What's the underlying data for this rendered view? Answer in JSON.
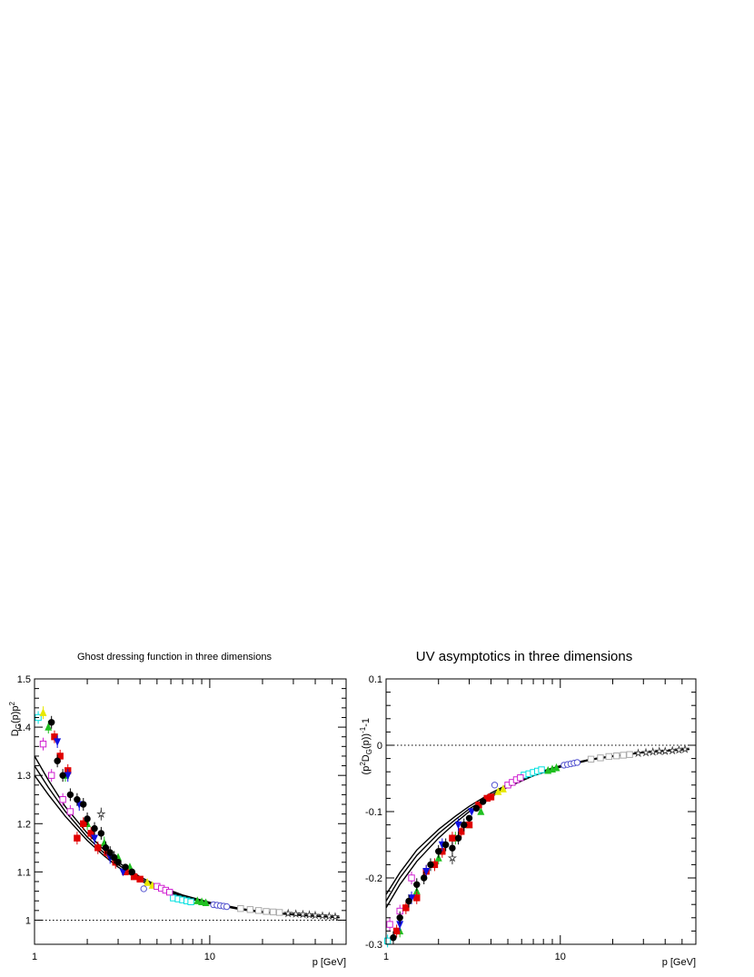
{
  "chart_data": [
    {
      "type": "scatter",
      "title": "Ghost dressing function in three dimensions",
      "xlabel": "p [GeV]",
      "ylabel_parts": {
        "base": "D",
        "sub": "G",
        "mid": "(p)p",
        "sup": "2"
      },
      "x_scale": "log",
      "xlim": [
        1,
        60
      ],
      "ylim": [
        0.95,
        1.5
      ],
      "x_ticklabels": [
        "1",
        "10"
      ],
      "y_ticks": [
        1,
        1.1,
        1.2,
        1.3,
        1.4,
        1.5
      ],
      "y_ticklabels": [
        "1",
        "1.1",
        "1.2",
        "1.3",
        "1.4",
        "1.5"
      ],
      "reference_line": {
        "y": 1,
        "style": "dotted"
      },
      "fit_curves": [
        {
          "x": [
            1,
            1.2,
            1.5,
            2,
            2.5,
            3,
            4,
            5,
            7,
            10,
            15,
            20,
            30,
            40,
            55
          ],
          "y": [
            1.34,
            1.29,
            1.235,
            1.18,
            1.145,
            1.12,
            1.09,
            1.072,
            1.052,
            1.037,
            1.024,
            1.018,
            1.012,
            1.009,
            1.006
          ]
        },
        {
          "x": [
            1,
            1.2,
            1.5,
            2,
            2.5,
            3,
            4,
            5,
            7,
            10,
            15,
            20,
            30,
            40,
            55
          ],
          "y": [
            1.32,
            1.275,
            1.225,
            1.172,
            1.139,
            1.115,
            1.086,
            1.069,
            1.05,
            1.035,
            1.023,
            1.017,
            1.011,
            1.008,
            1.006
          ]
        },
        {
          "x": [
            1,
            1.2,
            1.5,
            2,
            2.5,
            3,
            4,
            5,
            7,
            10,
            15,
            20,
            30,
            40,
            55
          ],
          "y": [
            1.3,
            1.26,
            1.215,
            1.165,
            1.133,
            1.11,
            1.082,
            1.066,
            1.048,
            1.034,
            1.022,
            1.016,
            1.011,
            1.008,
            1.005
          ]
        }
      ],
      "series": [
        {
          "color": "#00e0e0",
          "marker": "square-open",
          "x": [
            1.05,
            6.2,
            6.6,
            7.0,
            7.4,
            7.8
          ],
          "y": [
            1.42,
            1.046,
            1.044,
            1.042,
            1.04,
            1.038
          ]
        },
        {
          "color": "#e8e800",
          "marker": "triangle",
          "x": [
            1.12,
            4.4,
            4.7
          ],
          "y": [
            1.43,
            1.078,
            1.072
          ]
        },
        {
          "color": "#d020d0",
          "marker": "square-open",
          "x": [
            1.12,
            1.25,
            1.45,
            1.6,
            5.0,
            5.3,
            5.6,
            5.9
          ],
          "y": [
            1.365,
            1.3,
            1.25,
            1.225,
            1.07,
            1.066,
            1.062,
            1.058
          ]
        },
        {
          "color": "#20c020",
          "marker": "triangle",
          "x": [
            1.2,
            1.5,
            2.0,
            2.5,
            3.0,
            3.5,
            8.5,
            9.0,
            9.5
          ],
          "y": [
            1.4,
            1.3,
            1.2,
            1.16,
            1.13,
            1.11,
            1.04,
            1.038,
            1.036
          ]
        },
        {
          "color": "#e00000",
          "marker": "square",
          "x": [
            1.3,
            1.4,
            1.55,
            1.75,
            1.9,
            2.1,
            2.3,
            2.6,
            2.9,
            3.3,
            3.7,
            4.0
          ],
          "y": [
            1.38,
            1.34,
            1.31,
            1.17,
            1.2,
            1.18,
            1.15,
            1.14,
            1.12,
            1.1,
            1.09,
            1.085
          ]
        },
        {
          "color": "#1010e0",
          "marker": "triangle-down",
          "x": [
            1.35,
            1.55,
            1.8,
            2.2,
            2.7,
            3.2
          ],
          "y": [
            1.37,
            1.3,
            1.24,
            1.17,
            1.13,
            1.1
          ]
        },
        {
          "color": "#000000",
          "marker": "circle",
          "x": [
            1.25,
            1.35,
            1.45,
            1.6,
            1.75,
            1.9,
            2.0,
            2.2,
            2.4,
            2.55,
            2.7,
            2.85,
            3.0,
            3.3,
            3.6
          ],
          "y": [
            1.41,
            1.33,
            1.3,
            1.26,
            1.25,
            1.24,
            1.21,
            1.19,
            1.18,
            1.15,
            1.14,
            1.13,
            1.12,
            1.11,
            1.1
          ]
        },
        {
          "color": "#5555d0",
          "marker": "circle-open",
          "x": [
            4.2,
            10.5,
            11.0,
            11.5,
            12.0,
            12.5
          ],
          "y": [
            1.065,
            1.032,
            1.031,
            1.03,
            1.029,
            1.028
          ]
        },
        {
          "color": "#aaaaaa",
          "marker": "square-open",
          "x": [
            15,
            17,
            19,
            21,
            23,
            25
          ],
          "y": [
            1.024,
            1.022,
            1.02,
            1.018,
            1.017,
            1.016
          ]
        },
        {
          "color": "#333333",
          "marker": "star-open",
          "x": [
            2.4,
            28,
            31,
            34,
            37,
            40,
            44,
            48,
            52
          ],
          "y": [
            1.22,
            1.014,
            1.013,
            1.012,
            1.011,
            1.01,
            1.009,
            1.008,
            1.007
          ]
        }
      ]
    },
    {
      "type": "scatter",
      "title": "UV asymptotics in three dimensions",
      "xlabel": "p [GeV]",
      "ylabel_parts": {
        "pre": "(p",
        "sup": "2",
        "mid": "D",
        "sub": "G",
        "post": "(p))",
        "sup2": "-1",
        "tail": "-1"
      },
      "x_scale": "log",
      "xlim": [
        1,
        60
      ],
      "ylim": [
        -0.3,
        0.1
      ],
      "x_ticklabels": [
        "1",
        "10"
      ],
      "y_ticks": [
        -0.3,
        -0.2,
        -0.1,
        0,
        0.1
      ],
      "y_ticklabels": [
        "-0.3",
        "-0.2",
        "-0.1",
        "0",
        "0.1"
      ],
      "reference_line": {
        "y": 0,
        "style": "dotted"
      },
      "fit_curves": [
        {
          "x": [
            1,
            1.2,
            1.5,
            2,
            2.5,
            3,
            4,
            5,
            7,
            10,
            15,
            20,
            30,
            40,
            55
          ],
          "y": [
            -0.245,
            -0.21,
            -0.175,
            -0.14,
            -0.117,
            -0.1,
            -0.078,
            -0.063,
            -0.046,
            -0.033,
            -0.022,
            -0.017,
            -0.011,
            -0.009,
            -0.006
          ]
        },
        {
          "x": [
            1,
            1.2,
            1.5,
            2,
            2.5,
            3,
            4,
            5,
            7,
            10,
            15,
            20,
            30,
            40,
            55
          ],
          "y": [
            -0.235,
            -0.2,
            -0.166,
            -0.133,
            -0.112,
            -0.096,
            -0.075,
            -0.061,
            -0.045,
            -0.032,
            -0.021,
            -0.016,
            -0.011,
            -0.008,
            -0.006
          ]
        },
        {
          "x": [
            1,
            1.2,
            1.5,
            2,
            2.5,
            3,
            4,
            5,
            7,
            10,
            15,
            20,
            30,
            40,
            55
          ],
          "y": [
            -0.225,
            -0.192,
            -0.158,
            -0.127,
            -0.107,
            -0.092,
            -0.072,
            -0.059,
            -0.043,
            -0.031,
            -0.021,
            -0.016,
            -0.011,
            -0.008,
            -0.006
          ]
        }
      ],
      "series": [
        {
          "color": "#00e0e0",
          "marker": "square-open",
          "x": [
            1.02,
            6.2,
            6.6,
            7.0,
            7.4,
            7.8
          ],
          "y": [
            -0.295,
            -0.045,
            -0.043,
            -0.041,
            -0.039,
            -0.037
          ]
        },
        {
          "color": "#d020d0",
          "marker": "square-open",
          "x": [
            1.05,
            1.2,
            1.4,
            5.0,
            5.3,
            5.6,
            5.9
          ],
          "y": [
            -0.27,
            -0.25,
            -0.2,
            -0.06,
            -0.056,
            -0.052,
            -0.049
          ]
        },
        {
          "color": "#e8e800",
          "marker": "triangle",
          "x": [
            4.4,
            4.7
          ],
          "y": [
            -0.07,
            -0.066
          ]
        },
        {
          "color": "#20c020",
          "marker": "triangle",
          "x": [
            1.2,
            1.5,
            2.0,
            2.5,
            3.0,
            3.5,
            8.5,
            9.0,
            9.5
          ],
          "y": [
            -0.28,
            -0.22,
            -0.17,
            -0.14,
            -0.12,
            -0.1,
            -0.038,
            -0.036,
            -0.034
          ]
        },
        {
          "color": "#e00000",
          "marker": "square",
          "x": [
            1.15,
            1.3,
            1.5,
            1.7,
            1.9,
            2.1,
            2.4,
            2.7,
            3.0,
            3.4,
            3.8,
            4.0
          ],
          "y": [
            -0.28,
            -0.245,
            -0.23,
            -0.19,
            -0.18,
            -0.16,
            -0.14,
            -0.13,
            -0.12,
            -0.09,
            -0.08,
            -0.078
          ]
        },
        {
          "color": "#1010e0",
          "marker": "triangle-down",
          "x": [
            1.2,
            1.4,
            1.7,
            2.1,
            2.6,
            3.1
          ],
          "y": [
            -0.27,
            -0.23,
            -0.19,
            -0.15,
            -0.12,
            -0.1
          ]
        },
        {
          "color": "#000000",
          "marker": "circle",
          "x": [
            1.1,
            1.2,
            1.35,
            1.5,
            1.65,
            1.8,
            2.0,
            2.2,
            2.4,
            2.6,
            2.8,
            3.0,
            3.3,
            3.6
          ],
          "y": [
            -0.29,
            -0.26,
            -0.235,
            -0.21,
            -0.2,
            -0.18,
            -0.16,
            -0.15,
            -0.155,
            -0.14,
            -0.12,
            -0.11,
            -0.095,
            -0.085
          ]
        },
        {
          "color": "#5555d0",
          "marker": "circle-open",
          "x": [
            4.2,
            10.5,
            11.0,
            11.5,
            12.0,
            12.5
          ],
          "y": [
            -0.06,
            -0.03,
            -0.029,
            -0.028,
            -0.027,
            -0.026
          ]
        },
        {
          "color": "#aaaaaa",
          "marker": "square-open",
          "x": [
            15,
            17,
            19,
            21,
            23,
            25
          ],
          "y": [
            -0.021,
            -0.019,
            -0.017,
            -0.016,
            -0.015,
            -0.014
          ]
        },
        {
          "color": "#333333",
          "marker": "star-open",
          "x": [
            2.4,
            28,
            31,
            34,
            37,
            40,
            44,
            48,
            52
          ],
          "y": [
            -0.17,
            -0.012,
            -0.011,
            -0.01,
            -0.009,
            -0.009,
            -0.008,
            -0.007,
            -0.006
          ]
        }
      ]
    }
  ]
}
